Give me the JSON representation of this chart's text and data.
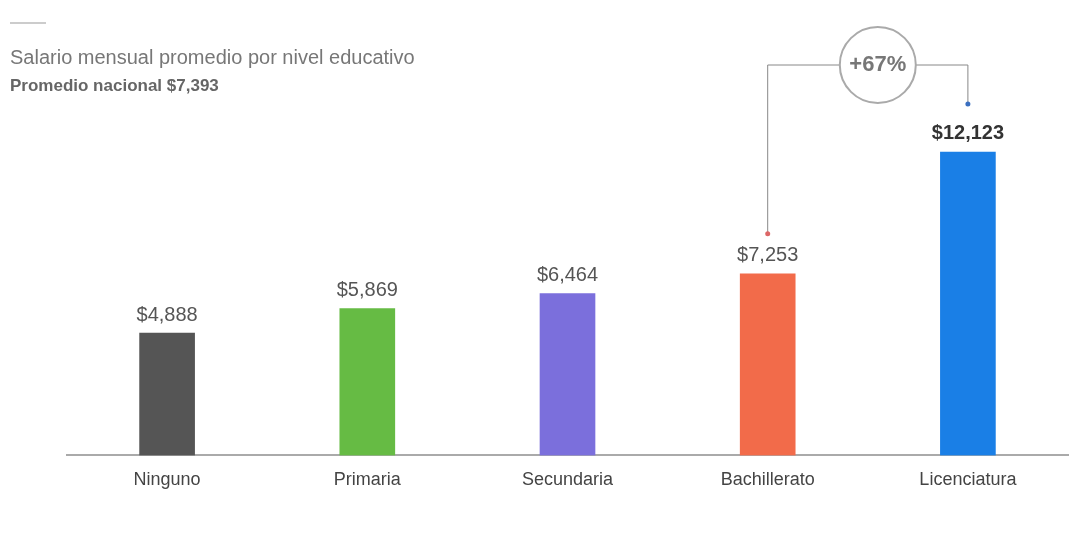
{
  "chart_data": {
    "type": "bar",
    "title": "Salario mensual promedio por nivel educativo",
    "subtitle": "Promedio nacional $7,393",
    "categories": [
      "Ninguno",
      "Primaria",
      "Secundaria",
      "Bachillerato",
      "Licenciatura"
    ],
    "values": [
      4888,
      5869,
      6464,
      7253,
      12123
    ],
    "colors": [
      "#555555",
      "#66bb44",
      "#7b6fdc",
      "#f26b4a",
      "#1a7fe6"
    ],
    "value_labels": [
      "$4,888",
      "$5,869",
      "$6,464",
      "$7,253",
      "$12,123"
    ],
    "annotations": [
      "+67%"
    ],
    "grid": false,
    "legend": false
  }
}
